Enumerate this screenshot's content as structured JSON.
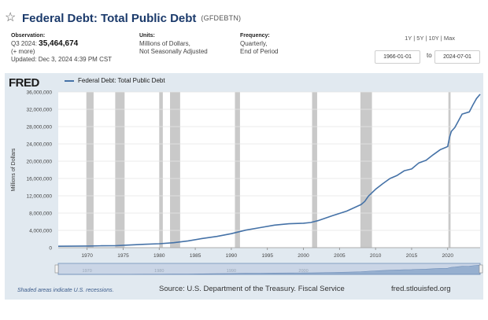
{
  "header": {
    "title": "Federal Debt: Total Public Debt",
    "series_id": "(GFDEBTN)",
    "star_icon": "star-icon"
  },
  "meta": {
    "observation_label": "Observation:",
    "observation_period": "Q3 2024:",
    "observation_value": "35,464,674",
    "more": "(+ more)",
    "updated": "Updated: Dec 3, 2024 4:39 PM CST",
    "units_label": "Units:",
    "units_line1": "Millions of Dollars,",
    "units_line2": "Not Seasonally Adjusted",
    "frequency_label": "Frequency:",
    "frequency_line1": "Quarterly,",
    "frequency_line2": "End of Period"
  },
  "range": {
    "buttons": [
      "1Y",
      "5Y",
      "10Y",
      "Max"
    ],
    "start_date": "1966-01-01",
    "end_date": "2024-07-01",
    "to_label": "to"
  },
  "chart_header": {
    "logo": "FRED",
    "legend_label": "Federal Debt: Total Public Debt"
  },
  "footer": {
    "recession_note": "Shaded areas indicate U.S. recessions.",
    "source": "Source: U.S. Department of the Treasury. Fiscal Service",
    "url": "fred.stlouisfed.org"
  },
  "colors": {
    "line": "#4572a7",
    "recession": "#c9c9c9",
    "panel": "#e1e9f0",
    "plot_bg": "#ffffff"
  },
  "chart_data": {
    "type": "line",
    "ylabel": "Millions of Dollars",
    "xlim": [
      1966.0,
      2024.5
    ],
    "ylim": [
      0,
      36000000
    ],
    "y_ticks": [
      0,
      4000000,
      8000000,
      12000000,
      16000000,
      20000000,
      24000000,
      28000000,
      32000000,
      36000000
    ],
    "y_tick_labels": [
      "0",
      "4,000,000",
      "8,000,000",
      "12,000,000",
      "16,000,000",
      "20,000,000",
      "24,000,000",
      "28,000,000",
      "32,000,000",
      "36,000,000"
    ],
    "x_ticks": [
      1970,
      1975,
      1980,
      1985,
      1990,
      1995,
      2000,
      2005,
      2010,
      2015,
      2020
    ],
    "x_tick_labels": [
      "1970",
      "1975",
      "1980",
      "1985",
      "1990",
      "1995",
      "2000",
      "2005",
      "2010",
      "2015",
      "2020"
    ],
    "navigator_labels": [
      "1970",
      "1980",
      "1990",
      "2000"
    ],
    "navigator_label_x": [
      1970,
      1980,
      1990,
      2000
    ],
    "recessions": [
      [
        1969.9,
        1970.9
      ],
      [
        1973.9,
        1975.2
      ],
      [
        1980.0,
        1980.5
      ],
      [
        1981.5,
        1982.9
      ],
      [
        1990.5,
        1991.2
      ],
      [
        2001.2,
        2001.9
      ],
      [
        2007.9,
        2009.5
      ],
      [
        2020.1,
        2020.4
      ]
    ],
    "series": [
      {
        "name": "Federal Debt: Total Public Debt",
        "x": [
          1966.0,
          1968.0,
          1970.0,
          1972.0,
          1974.0,
          1976.0,
          1978.0,
          1980.0,
          1982.0,
          1984.0,
          1986.0,
          1988.0,
          1990.0,
          1992.0,
          1994.0,
          1996.0,
          1998.0,
          2000.0,
          2001.0,
          2002.0,
          2004.0,
          2006.0,
          2008.0,
          2008.5,
          2009.0,
          2010.0,
          2011.0,
          2012.0,
          2013.0,
          2014.0,
          2015.0,
          2016.0,
          2017.0,
          2018.0,
          2019.0,
          2019.75,
          2020.0,
          2020.25,
          2020.5,
          2021.0,
          2022.0,
          2023.0,
          2023.5,
          2024.0,
          2024.5
        ],
        "y": [
          320000,
          350000,
          380000,
          430000,
          480000,
          620000,
          780000,
          910000,
          1140000,
          1570000,
          2120000,
          2600000,
          3230000,
          4060000,
          4640000,
          5220000,
          5530000,
          5660000,
          5810000,
          6230000,
          7380000,
          8450000,
          9990000,
          10700000,
          11900000,
          13500000,
          14800000,
          16000000,
          16700000,
          17800000,
          18200000,
          19600000,
          20200000,
          21500000,
          22700000,
          23200000,
          23400000,
          25500000,
          26900000,
          27800000,
          30900000,
          31400000,
          33000000,
          34500000,
          35464674
        ]
      }
    ]
  }
}
